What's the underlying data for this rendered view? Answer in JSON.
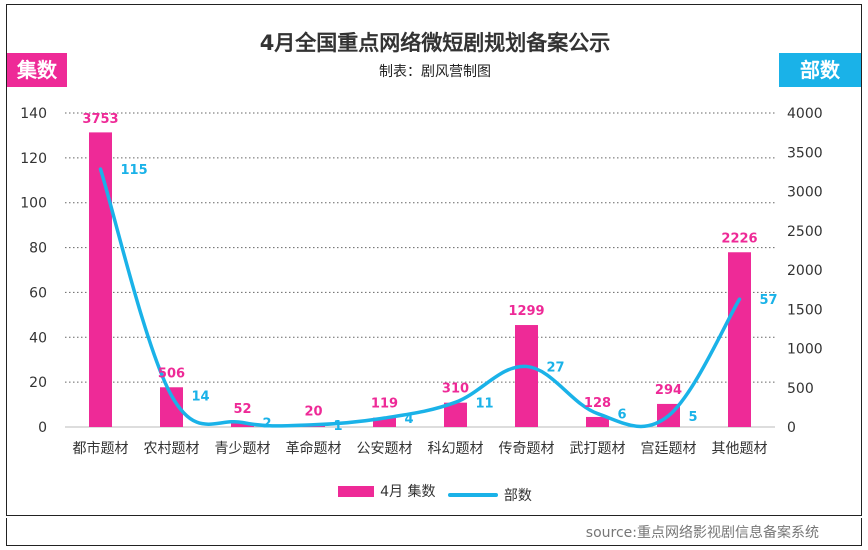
{
  "title": "4月全国重点网络微短剧规划备案公示",
  "subtitle": "制表：剧风营制图",
  "left_badge": "集数",
  "right_badge": "部数",
  "source": "source:重点网络影视剧信息备案系统",
  "colors": {
    "bar": "#ee2a97",
    "line": "#1ab2e8",
    "bar_label": "#ee2a97",
    "line_label": "#1ab2e8"
  },
  "chart_data": {
    "type": "bar",
    "categories": [
      "都市题材",
      "农村题材",
      "青少题材",
      "革命题材",
      "公安题材",
      "科幻题材",
      "传奇题材",
      "武打题材",
      "宫廷题材",
      "其他题材"
    ],
    "series": [
      {
        "name": "4月 集数",
        "type": "bar",
        "axis": "right",
        "values": [
          3753,
          506,
          52,
          20,
          119,
          310,
          1299,
          128,
          294,
          2226
        ]
      },
      {
        "name": "部数",
        "type": "line",
        "axis": "left",
        "values": [
          115,
          14,
          2,
          1,
          4,
          11,
          27,
          6,
          5,
          57
        ]
      }
    ],
    "left_axis": {
      "ticks": [
        0,
        20,
        40,
        60,
        80,
        100,
        120,
        140
      ],
      "ylim": [
        0,
        140
      ]
    },
    "right_axis": {
      "ticks": [
        0,
        500,
        1000,
        1500,
        2000,
        2500,
        3000,
        3500,
        4000
      ],
      "ylim": [
        0,
        4000
      ]
    },
    "grid": true,
    "legend": "bottom"
  }
}
